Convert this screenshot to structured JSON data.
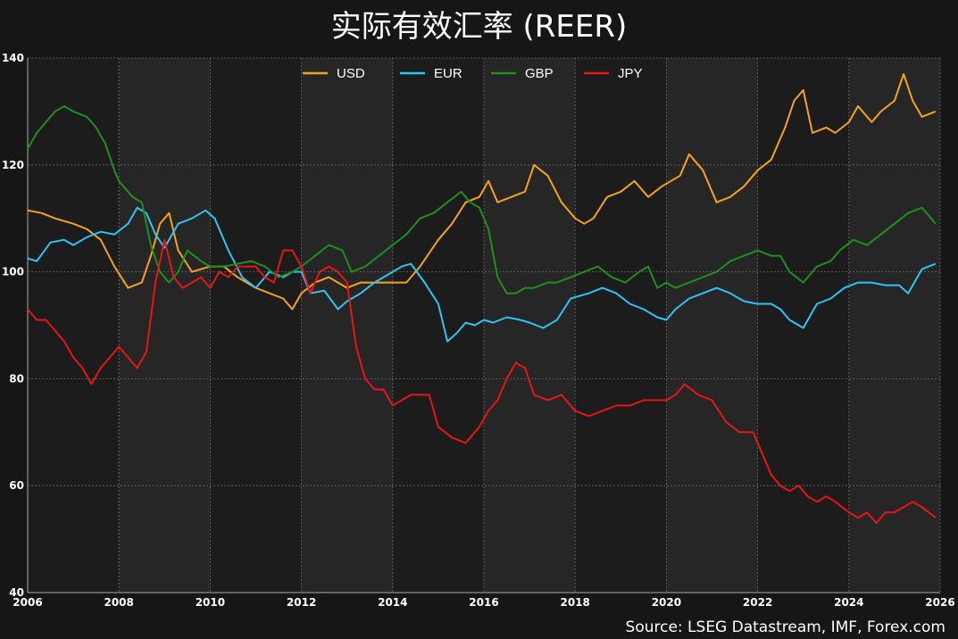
{
  "title": "实际有效汇率 (REER)",
  "source": "Source: LSEG Datastream, IMF, Forex.com",
  "chart_data": {
    "type": "line",
    "title": "实际有效汇率 (REER)",
    "xlabel": "",
    "ylabel": "",
    "xlim": [
      2006,
      2026
    ],
    "ylim": [
      40,
      140
    ],
    "x_ticks": [
      "2006",
      "2008",
      "2010",
      "2012",
      "2014",
      "2016",
      "2018",
      "2020",
      "2022",
      "2024",
      "2026"
    ],
    "y_ticks": [
      "40",
      "60",
      "80",
      "100",
      "120",
      "140"
    ],
    "grid": true,
    "legend_position": "top-center",
    "series": [
      {
        "name": "USD",
        "color": "#f5a21e",
        "x": [
          2006.0,
          2006.3,
          2006.6,
          2007.0,
          2007.3,
          2007.6,
          2007.9,
          2008.2,
          2008.5,
          2008.7,
          2008.9,
          2009.1,
          2009.3,
          2009.6,
          2010.0,
          2010.3,
          2010.6,
          2011.0,
          2011.3,
          2011.6,
          2011.8,
          2012.0,
          2012.3,
          2012.6,
          2013.0,
          2013.3,
          2013.6,
          2014.0,
          2014.3,
          2014.6,
          2015.0,
          2015.3,
          2015.6,
          2015.9,
          2016.1,
          2016.3,
          2016.6,
          2016.9,
          2017.1,
          2017.4,
          2017.7,
          2018.0,
          2018.2,
          2018.4,
          2018.7,
          2019.0,
          2019.3,
          2019.6,
          2019.9,
          2020.1,
          2020.3,
          2020.5,
          2020.8,
          2021.1,
          2021.4,
          2021.7,
          2022.0,
          2022.3,
          2022.6,
          2022.8,
          2023.0,
          2023.2,
          2023.5,
          2023.7,
          2024.0,
          2024.2,
          2024.5,
          2024.7,
          2025.0,
          2025.2,
          2025.4,
          2025.6,
          2025.9
        ],
        "y": [
          111.5,
          111,
          110,
          109,
          108,
          106,
          101,
          97,
          98,
          103,
          109,
          111,
          104,
          100,
          101,
          101,
          99,
          97,
          96,
          95,
          93,
          96,
          98,
          99,
          97,
          98,
          98,
          98,
          98,
          101,
          106,
          109,
          113,
          114,
          117,
          113,
          114,
          115,
          120,
          118,
          113,
          110,
          109,
          110,
          114,
          115,
          117,
          114,
          116,
          117,
          118,
          122,
          119,
          113,
          114,
          116,
          119,
          121,
          127,
          132,
          134,
          126,
          127,
          126,
          128,
          131,
          128,
          130,
          132,
          137,
          132,
          129,
          130
        ]
      },
      {
        "name": "EUR",
        "color": "#2ec4f5",
        "x": [
          2006.0,
          2006.2,
          2006.5,
          2006.8,
          2007.0,
          2007.3,
          2007.6,
          2007.9,
          2008.2,
          2008.4,
          2008.6,
          2008.8,
          2009.0,
          2009.3,
          2009.6,
          2009.9,
          2010.1,
          2010.4,
          2010.7,
          2011.0,
          2011.3,
          2011.6,
          2011.8,
          2012.0,
          2012.2,
          2012.5,
          2012.8,
          2013.0,
          2013.3,
          2013.6,
          2014.0,
          2014.2,
          2014.4,
          2014.7,
          2015.0,
          2015.2,
          2015.4,
          2015.6,
          2015.8,
          2016.0,
          2016.2,
          2016.5,
          2016.8,
          2017.0,
          2017.3,
          2017.6,
          2017.9,
          2018.1,
          2018.3,
          2018.6,
          2018.9,
          2019.2,
          2019.5,
          2019.8,
          2020.0,
          2020.2,
          2020.5,
          2020.8,
          2021.1,
          2021.4,
          2021.7,
          2022.0,
          2022.3,
          2022.5,
          2022.7,
          2023.0,
          2023.3,
          2023.6,
          2023.9,
          2024.2,
          2024.5,
          2024.8,
          2025.1,
          2025.3,
          2025.6,
          2025.9
        ],
        "y": [
          102.5,
          102,
          105.5,
          106,
          105,
          106.5,
          107.5,
          107,
          109,
          112,
          111,
          107,
          104.5,
          109,
          110,
          111.5,
          110,
          104,
          99,
          97,
          100,
          99,
          100,
          100,
          96,
          96.5,
          93,
          94.5,
          96,
          98,
          100,
          101,
          101.5,
          98,
          94,
          87,
          88.5,
          90.5,
          90,
          91,
          90.5,
          91.5,
          91,
          90.5,
          89.5,
          91,
          95,
          95.5,
          96,
          97,
          96,
          94,
          93,
          91.5,
          91,
          93,
          95,
          96,
          97,
          96,
          94.5,
          94,
          94,
          93,
          91,
          89.5,
          94,
          95,
          97,
          98,
          98,
          97.5,
          97.5,
          96,
          100.5,
          101.5
        ]
      },
      {
        "name": "GBP",
        "color": "#1e8f1e",
        "x": [
          2006.0,
          2006.2,
          2006.4,
          2006.6,
          2006.8,
          2007.0,
          2007.3,
          2007.5,
          2007.7,
          2007.9,
          2008.0,
          2008.3,
          2008.5,
          2008.7,
          2008.9,
          2009.1,
          2009.3,
          2009.5,
          2009.8,
          2010.0,
          2010.3,
          2010.6,
          2010.9,
          2011.2,
          2011.5,
          2011.8,
          2012.0,
          2012.3,
          2012.6,
          2012.9,
          2013.1,
          2013.4,
          2013.7,
          2014.0,
          2014.3,
          2014.6,
          2014.9,
          2015.2,
          2015.5,
          2015.7,
          2015.9,
          2016.1,
          2016.3,
          2016.5,
          2016.7,
          2016.9,
          2017.1,
          2017.4,
          2017.6,
          2017.9,
          2018.2,
          2018.5,
          2018.8,
          2019.1,
          2019.4,
          2019.6,
          2019.8,
          2020.0,
          2020.2,
          2020.5,
          2020.8,
          2021.1,
          2021.4,
          2021.7,
          2022.0,
          2022.3,
          2022.5,
          2022.7,
          2023.0,
          2023.3,
          2023.6,
          2023.8,
          2024.1,
          2024.4,
          2024.7,
          2025.0,
          2025.3,
          2025.6,
          2025.9
        ],
        "y": [
          123,
          126,
          128,
          130,
          131,
          130,
          129,
          127,
          124,
          119,
          117,
          114,
          113,
          105,
          100,
          98,
          100,
          104,
          102,
          101,
          101,
          101.5,
          102,
          101,
          99,
          100,
          101,
          103,
          105,
          104,
          100,
          101,
          103,
          105,
          107,
          110,
          111,
          113,
          115,
          113,
          112,
          108,
          99,
          96,
          96,
          97,
          97,
          98,
          98,
          99,
          100,
          101,
          99,
          98,
          100,
          101,
          97,
          98,
          97,
          98,
          99,
          100,
          102,
          103,
          104,
          103,
          103,
          100,
          98,
          101,
          102,
          104,
          106,
          105,
          107,
          109,
          111,
          112,
          109
        ]
      },
      {
        "name": "JPY",
        "color": "#e81515",
        "x": [
          2006.0,
          2006.2,
          2006.4,
          2006.6,
          2006.8,
          2007.0,
          2007.2,
          2007.4,
          2007.6,
          2007.8,
          2008.0,
          2008.2,
          2008.4,
          2008.6,
          2008.8,
          2009.0,
          2009.2,
          2009.4,
          2009.6,
          2009.8,
          2010.0,
          2010.2,
          2010.4,
          2010.6,
          2010.8,
          2011.0,
          2011.2,
          2011.4,
          2011.6,
          2011.8,
          2012.0,
          2012.2,
          2012.4,
          2012.6,
          2012.8,
          2013.0,
          2013.2,
          2013.4,
          2013.6,
          2013.8,
          2014.0,
          2014.2,
          2014.4,
          2014.6,
          2014.8,
          2015.0,
          2015.3,
          2015.6,
          2015.9,
          2016.1,
          2016.3,
          2016.5,
          2016.7,
          2016.9,
          2017.1,
          2017.4,
          2017.7,
          2018.0,
          2018.3,
          2018.6,
          2018.9,
          2019.2,
          2019.5,
          2019.8,
          2020.0,
          2020.2,
          2020.4,
          2020.7,
          2021.0,
          2021.3,
          2021.6,
          2021.9,
          2022.1,
          2022.3,
          2022.5,
          2022.7,
          2022.9,
          2023.1,
          2023.3,
          2023.5,
          2023.7,
          2024.0,
          2024.2,
          2024.4,
          2024.6,
          2024.8,
          2025.0,
          2025.2,
          2025.4,
          2025.6,
          2025.9
        ],
        "y": [
          93,
          91,
          91,
          89,
          87,
          84,
          82,
          79,
          82,
          84,
          86,
          84,
          82,
          85,
          98,
          106,
          99,
          97,
          98,
          99,
          97,
          100,
          99,
          101,
          101,
          101,
          99,
          98,
          104,
          104,
          101,
          96,
          100,
          101,
          100,
          98,
          86,
          80,
          78,
          78,
          75,
          76,
          77,
          77,
          77,
          71,
          69,
          68,
          71,
          74,
          76,
          80,
          83,
          82,
          77,
          76,
          77,
          74,
          73,
          74,
          75,
          75,
          76,
          76,
          76,
          77,
          79,
          77,
          76,
          72,
          70,
          70,
          66,
          62,
          60,
          59,
          60,
          58,
          57,
          58,
          57,
          55,
          54,
          55,
          53,
          55,
          55,
          56,
          57,
          56,
          54
        ]
      }
    ]
  }
}
